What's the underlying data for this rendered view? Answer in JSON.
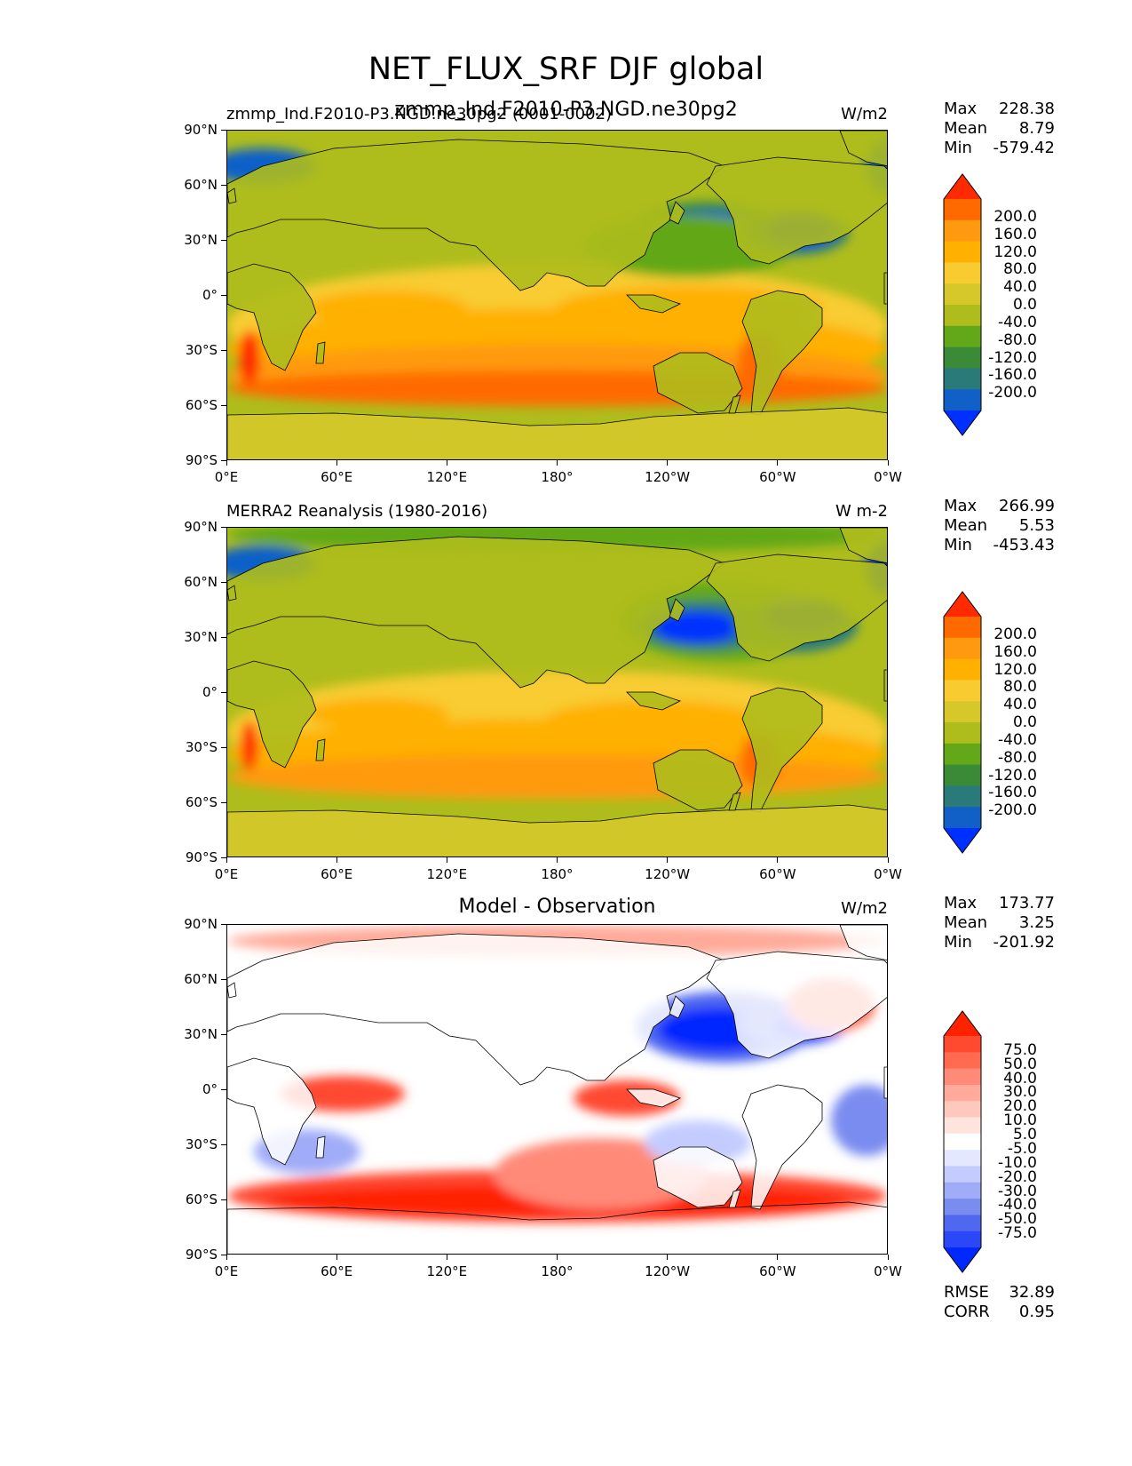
{
  "title": "NET_FLUX_SRF DJF global",
  "overlay_title": "zmmp_Ind.F2010-P3.NGD.ne30pg2",
  "panels": [
    {
      "left_label": "zmmp_Ind.F2010-P3.NGD.ne30pg2 (0001-0002)",
      "units": "W/m2",
      "stats": {
        "max_label": "Max",
        "max": "228.38",
        "mean_label": "Mean",
        "mean": "8.79",
        "min_label": "Min",
        "min": "-579.42"
      },
      "colorbar": {
        "levels": [
          "200.0",
          "160.0",
          "120.0",
          "80.0",
          "40.0",
          "0.0",
          "-40.0",
          "-80.0",
          "-120.0",
          "-160.0",
          "-200.0"
        ],
        "colors": [
          "#ff2a00",
          "#ff6a00",
          "#ff9a10",
          "#ffb000",
          "#f8cc30",
          "#d6c82a",
          "#aebd1c",
          "#62a818",
          "#3a8a38",
          "#2a7a7a",
          "#1060c8",
          "#0030ff"
        ]
      }
    },
    {
      "left_label": "MERRA2 Reanalysis (1980-2016)",
      "units": "W m-2",
      "stats": {
        "max_label": "Max",
        "max": "266.99",
        "mean_label": "Mean",
        "mean": "5.53",
        "min_label": "Min",
        "min": "-453.43"
      },
      "colorbar": {
        "levels": [
          "200.0",
          "160.0",
          "120.0",
          "80.0",
          "40.0",
          "0.0",
          "-40.0",
          "-80.0",
          "-120.0",
          "-160.0",
          "-200.0"
        ],
        "colors": [
          "#ff2a00",
          "#ff6a00",
          "#ff9a10",
          "#ffb000",
          "#f8cc30",
          "#d6c82a",
          "#aebd1c",
          "#62a818",
          "#3a8a38",
          "#2a7a7a",
          "#1060c8",
          "#0030ff"
        ]
      }
    },
    {
      "center_label": "Model - Observation",
      "units": "W/m2",
      "stats": {
        "max_label": "Max",
        "max": "173.77",
        "mean_label": "Mean",
        "mean": "3.25",
        "min_label": "Min",
        "min": "-201.92"
      },
      "colorbar": {
        "levels": [
          "75.0",
          "50.0",
          "40.0",
          "30.0",
          "20.0",
          "10.0",
          "5.0",
          "-5.0",
          "-10.0",
          "-20.0",
          "-30.0",
          "-40.0",
          "-50.0",
          "-75.0"
        ],
        "colors": [
          "#ff2200",
          "#ff4a30",
          "#ff6a50",
          "#ff8a78",
          "#ffaa9a",
          "#ffc8bc",
          "#ffe4de",
          "#ffffff",
          "#e4e8ff",
          "#c4ccff",
          "#a0acf8",
          "#7a8cf0",
          "#5068f0",
          "#2a48f8",
          "#0028ff"
        ]
      },
      "rmse_label": "RMSE",
      "rmse": "32.89",
      "corr_label": "CORR",
      "corr": "0.95"
    }
  ],
  "lat_ticks": [
    "90°N",
    "60°N",
    "30°N",
    "0°",
    "30°S",
    "60°S",
    "90°S"
  ],
  "lon_ticks": [
    "0°E",
    "60°E",
    "120°E",
    "180°",
    "120°W",
    "60°W",
    "0°W"
  ]
}
